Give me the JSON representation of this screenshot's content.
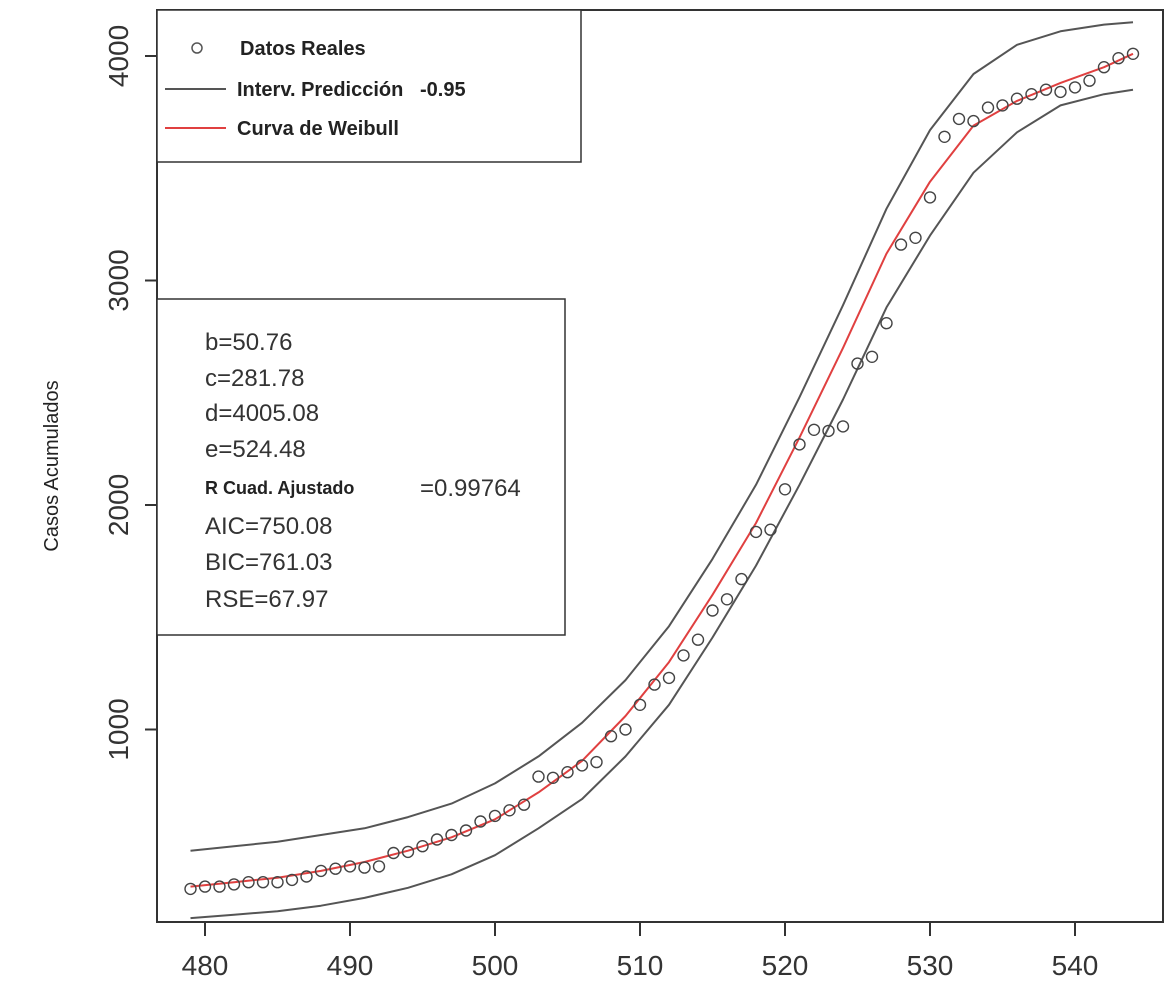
{
  "chart_data": {
    "type": "scatter",
    "title": "",
    "xlabel": "",
    "ylabel": "Casos Acumulados",
    "xlim": [
      479,
      545
    ],
    "ylim": [
      0,
      4150
    ],
    "xticks": [
      480,
      490,
      500,
      510,
      520,
      530,
      540
    ],
    "yticks": [
      1000,
      2000,
      3000,
      4000
    ],
    "grid": false,
    "legend_placement": "top-left",
    "legend": [
      {
        "label": "Datos Reales",
        "kind": "points",
        "color": "#555555"
      },
      {
        "label": "Interv. Predicción   -0.95",
        "kind": "line",
        "color": "#555555"
      },
      {
        "label": "Curva de Weibull",
        "kind": "line",
        "color": "#e04040"
      }
    ],
    "fit_params": {
      "b": "b=50.76",
      "c": "c=281.78",
      "d": "d=4005.08",
      "e": "e=524.48",
      "r2_label": "R Cuad. Ajustado",
      "r2_value": "=0.99764",
      "aic": "AIC=750.08",
      "bic": "BIC=761.03",
      "rse": "RSE=67.97"
    },
    "series": [
      {
        "name": "Datos Reales",
        "x": [
          479,
          480,
          481,
          482,
          483,
          484,
          485,
          486,
          487,
          488,
          489,
          490,
          491,
          492,
          493,
          494,
          495,
          496,
          497,
          498,
          499,
          500,
          501,
          502,
          503,
          504,
          505,
          506,
          507,
          508,
          509,
          510,
          511,
          512,
          513,
          514,
          515,
          516,
          517,
          518,
          519,
          520,
          521,
          522,
          523,
          524,
          525,
          526,
          527,
          528,
          529,
          530,
          531,
          532,
          533,
          534,
          535,
          536,
          537,
          538,
          539,
          540,
          541,
          542,
          543,
          544
        ],
        "y": [
          290,
          300,
          300,
          310,
          320,
          320,
          320,
          330,
          345,
          370,
          380,
          390,
          385,
          390,
          450,
          455,
          480,
          510,
          530,
          550,
          590,
          615,
          640,
          665,
          790,
          785,
          810,
          840,
          855,
          970,
          1000,
          1110,
          1200,
          1230,
          1330,
          1400,
          1530,
          1580,
          1670,
          1880,
          1890,
          2070,
          2270,
          2335,
          2330,
          2350,
          2630,
          2660,
          2810,
          3160,
          3190,
          3370,
          3640,
          3720,
          3710,
          3770,
          3780,
          3810,
          3830,
          3850,
          3840,
          3860,
          3890,
          3950,
          3990,
          4010
        ]
      },
      {
        "name": "Curva de Weibull",
        "x": [
          479,
          482,
          485,
          488,
          491,
          494,
          497,
          500,
          503,
          506,
          509,
          512,
          515,
          518,
          521,
          524,
          527,
          530,
          533,
          536,
          539,
          542,
          544
        ],
        "y": [
          300,
          320,
          340,
          370,
          410,
          460,
          520,
          600,
          720,
          860,
          1060,
          1300,
          1600,
          1920,
          2300,
          2700,
          3120,
          3440,
          3690,
          3800,
          3880,
          3950,
          4010
        ]
      },
      {
        "name": "Interv. Predicción upper",
        "x": [
          479,
          482,
          485,
          488,
          491,
          494,
          497,
          500,
          503,
          506,
          509,
          512,
          515,
          518,
          521,
          524,
          527,
          530,
          533,
          536,
          539,
          542,
          544
        ],
        "y": [
          460,
          480,
          500,
          530,
          560,
          610,
          670,
          760,
          880,
          1030,
          1220,
          1460,
          1760,
          2090,
          2480,
          2890,
          3320,
          3670,
          3920,
          4050,
          4110,
          4140,
          4150
        ]
      },
      {
        "name": "Interv. Predicción lower",
        "x": [
          479,
          482,
          485,
          488,
          491,
          494,
          497,
          500,
          503,
          506,
          509,
          512,
          515,
          518,
          521,
          524,
          527,
          530,
          533,
          536,
          539,
          542,
          544
        ],
        "y": [
          160,
          175,
          190,
          215,
          250,
          295,
          355,
          440,
          560,
          690,
          880,
          1110,
          1410,
          1730,
          2090,
          2470,
          2880,
          3200,
          3480,
          3660,
          3780,
          3830,
          3850
        ]
      }
    ]
  }
}
